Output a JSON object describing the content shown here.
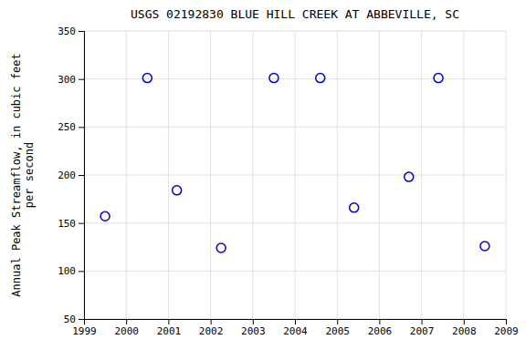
{
  "chart_data": {
    "type": "scatter",
    "title": "USGS 02192830 BLUE HILL CREEK AT ABBEVILLE, SC",
    "ylabel": "Annual Peak Streamflow, in cubic feet\nper second",
    "x": [
      1999.5,
      2000.5,
      2001.2,
      2002.25,
      2003.5,
      2004.6,
      2005.4,
      2006.7,
      2007.4,
      2008.5
    ],
    "values": [
      157,
      301,
      184,
      124,
      301,
      301,
      166,
      198,
      301,
      126
    ],
    "color": "#0000cc",
    "marker": "open-circle",
    "xlim": [
      1999,
      2009
    ],
    "ylim": [
      50,
      350
    ],
    "xticks": [
      1999,
      2000,
      2001,
      2002,
      2003,
      2004,
      2005,
      2006,
      2007,
      2008,
      2009
    ],
    "yticks": [
      50,
      100,
      150,
      200,
      250,
      300,
      350
    ],
    "grid": true
  }
}
